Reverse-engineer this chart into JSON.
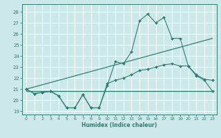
{
  "title": "",
  "xlabel": "Humidex (Indice chaleur)",
  "bg_color": "#cce8e8",
  "grid_color": "#ffffff",
  "line_color": "#2e7d72",
  "xlim": [
    -0.5,
    23.5
  ],
  "ylim": [
    18.7,
    28.7
  ],
  "yticks": [
    19,
    20,
    21,
    22,
    23,
    24,
    25,
    26,
    27,
    28
  ],
  "xticks": [
    0,
    1,
    2,
    3,
    4,
    5,
    6,
    7,
    8,
    9,
    10,
    11,
    12,
    13,
    14,
    15,
    16,
    17,
    18,
    19,
    20,
    21,
    22,
    23
  ],
  "lines": [
    {
      "x": [
        0,
        1,
        2,
        3,
        4,
        5,
        6,
        7,
        8,
        9,
        10,
        11,
        12,
        13,
        14,
        15,
        16,
        17,
        18,
        19,
        20,
        21,
        22,
        23
      ],
      "y": [
        21.0,
        20.6,
        20.7,
        20.8,
        20.4,
        19.3,
        19.3,
        20.5,
        19.3,
        19.3,
        21.3,
        23.5,
        23.3,
        24.4,
        27.2,
        27.8,
        27.0,
        27.5,
        25.6,
        25.6,
        23.1,
        22.2,
        21.8,
        20.8
      ],
      "markers": true
    },
    {
      "x": [
        0,
        23
      ],
      "y": [
        21.0,
        25.6
      ],
      "markers": false
    },
    {
      "x": [
        0,
        23
      ],
      "y": [
        20.8,
        20.8
      ],
      "markers": false
    },
    {
      "x": [
        0,
        1,
        2,
        3,
        4,
        5,
        6,
        7,
        8,
        9,
        10,
        11,
        12,
        13,
        14,
        15,
        16,
        17,
        18,
        19,
        20,
        21,
        22,
        23
      ],
      "y": [
        21.0,
        20.6,
        20.7,
        20.8,
        20.4,
        19.3,
        19.3,
        20.5,
        19.3,
        19.3,
        21.5,
        21.8,
        22.0,
        22.3,
        22.7,
        22.8,
        23.0,
        23.2,
        23.3,
        23.1,
        23.1,
        22.3,
        21.9,
        21.8
      ],
      "markers": true
    }
  ]
}
